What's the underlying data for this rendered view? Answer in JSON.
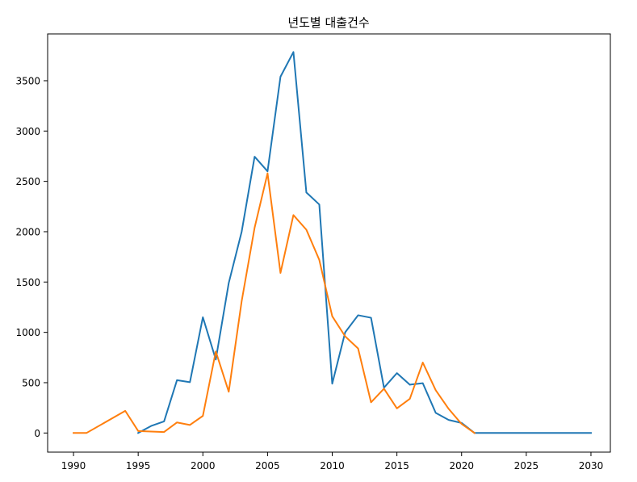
{
  "chart_data": {
    "type": "line",
    "title": "년도별 대출건수",
    "xlabel": "",
    "ylabel": "",
    "xlim": [
      1988,
      2031.5
    ],
    "ylim": [
      -190,
      3965
    ],
    "xticks": [
      1990,
      1995,
      2000,
      2005,
      2010,
      2015,
      2020,
      2025,
      2030
    ],
    "yticks": [
      0,
      500,
      1000,
      1500,
      2000,
      2500,
      3000,
      3500
    ],
    "grid": false,
    "legend": "none",
    "series": [
      {
        "color": "#1f77b4",
        "x": [
          1995,
          1996,
          1997,
          1998,
          1999,
          2000,
          2001,
          2002,
          2003,
          2004,
          2005,
          2006,
          2007,
          2008,
          2009,
          2010,
          2011,
          2012,
          2013,
          2014,
          2015,
          2016,
          2017,
          2018,
          2019,
          2020,
          2021,
          2022,
          2023,
          2024,
          2025,
          2026,
          2027,
          2028,
          2029,
          2030
        ],
        "y": [
          0,
          70,
          115,
          525,
          505,
          1150,
          730,
          1490,
          2000,
          2745,
          2600,
          3540,
          3785,
          2390,
          2270,
          490,
          1000,
          1170,
          1145,
          450,
          595,
          480,
          495,
          200,
          130,
          100,
          0,
          0,
          0,
          0,
          0,
          0,
          0,
          0,
          0,
          0
        ]
      },
      {
        "color": "#ff7f0e",
        "x": [
          1990,
          1991,
          1994,
          1995,
          1996,
          1997,
          1998,
          1999,
          2000,
          2001,
          2002,
          2003,
          2004,
          2005,
          2006,
          2007,
          2008,
          2009,
          2010,
          2011,
          2012,
          2013,
          2014,
          2015,
          2016,
          2017,
          2018,
          2019,
          2020,
          2021
        ],
        "y": [
          0,
          0,
          220,
          20,
          15,
          10,
          105,
          80,
          170,
          810,
          410,
          1310,
          2040,
          2580,
          1590,
          2165,
          2020,
          1720,
          1160,
          960,
          840,
          305,
          440,
          245,
          340,
          700,
          425,
          240,
          90,
          0
        ]
      }
    ]
  }
}
